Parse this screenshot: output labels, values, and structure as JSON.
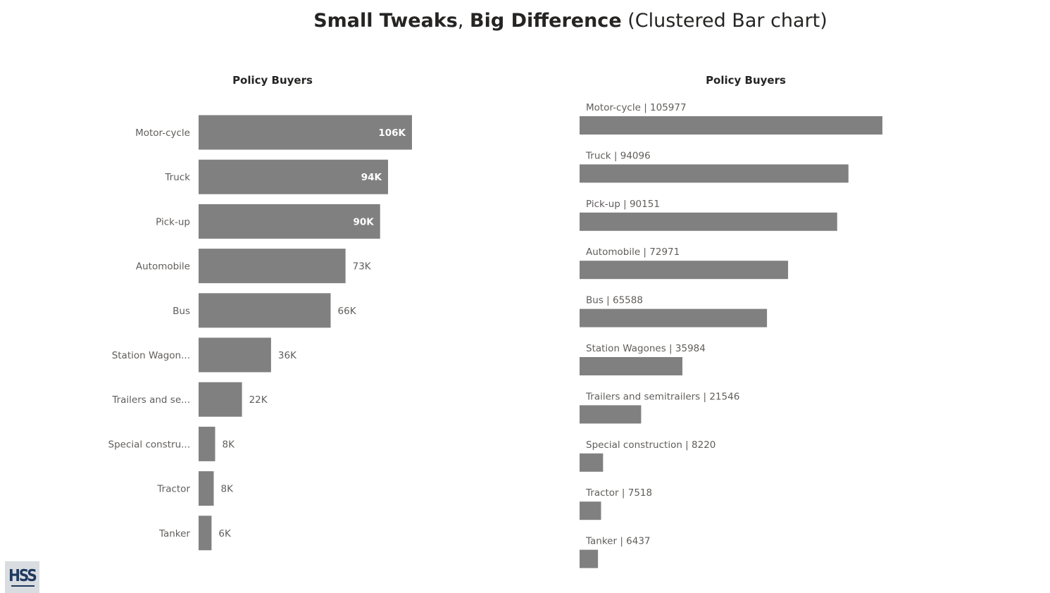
{
  "page": {
    "title_part1": "Small Tweaks",
    "title_sep": ", ",
    "title_part2": "Big Difference",
    "title_part3": " (Clustered Bar chart)"
  },
  "logo": {
    "text": "HSS"
  },
  "chart_data": [
    {
      "type": "bar",
      "orientation": "horizontal",
      "title": "Policy Buyers",
      "categories": [
        "Motor-cycle",
        "Truck",
        "Pick-up",
        "Automobile",
        "Bus",
        "Station Wagon...",
        "Trailers and se...",
        "Special constru...",
        "Tractor",
        "Tanker"
      ],
      "values": [
        105977,
        94096,
        90151,
        72971,
        65588,
        35984,
        21546,
        8220,
        7518,
        6437
      ],
      "data_labels": [
        "106K",
        "94K",
        "90K",
        "73K",
        "66K",
        "36K",
        "22K",
        "8K",
        "8K",
        "6K"
      ],
      "xlim": [
        0,
        105977
      ],
      "grid": false,
      "color": "#808080"
    },
    {
      "type": "bar",
      "orientation": "horizontal",
      "title": "Policy Buyers",
      "categories": [
        "Motor-cycle",
        "Truck",
        "Pick-up",
        "Automobile",
        "Bus",
        "Station Wagones",
        "Trailers and semitrailers",
        "Special construction",
        "Tractor",
        "Tanker"
      ],
      "values": [
        105977,
        94096,
        90151,
        72971,
        65588,
        35984,
        21546,
        8220,
        7518,
        6437
      ],
      "data_labels": [
        "Motor-cycle | 105977",
        "Truck | 94096",
        "Pick-up | 90151",
        "Automobile | 72971",
        "Bus | 65588",
        "Station Wagones | 35984",
        "Trailers and semitrailers | 21546",
        "Special construction | 8220",
        "Tractor | 7518",
        "Tanker | 6437"
      ],
      "xlim": [
        0,
        105977
      ],
      "grid": false,
      "color": "#808080"
    }
  ]
}
